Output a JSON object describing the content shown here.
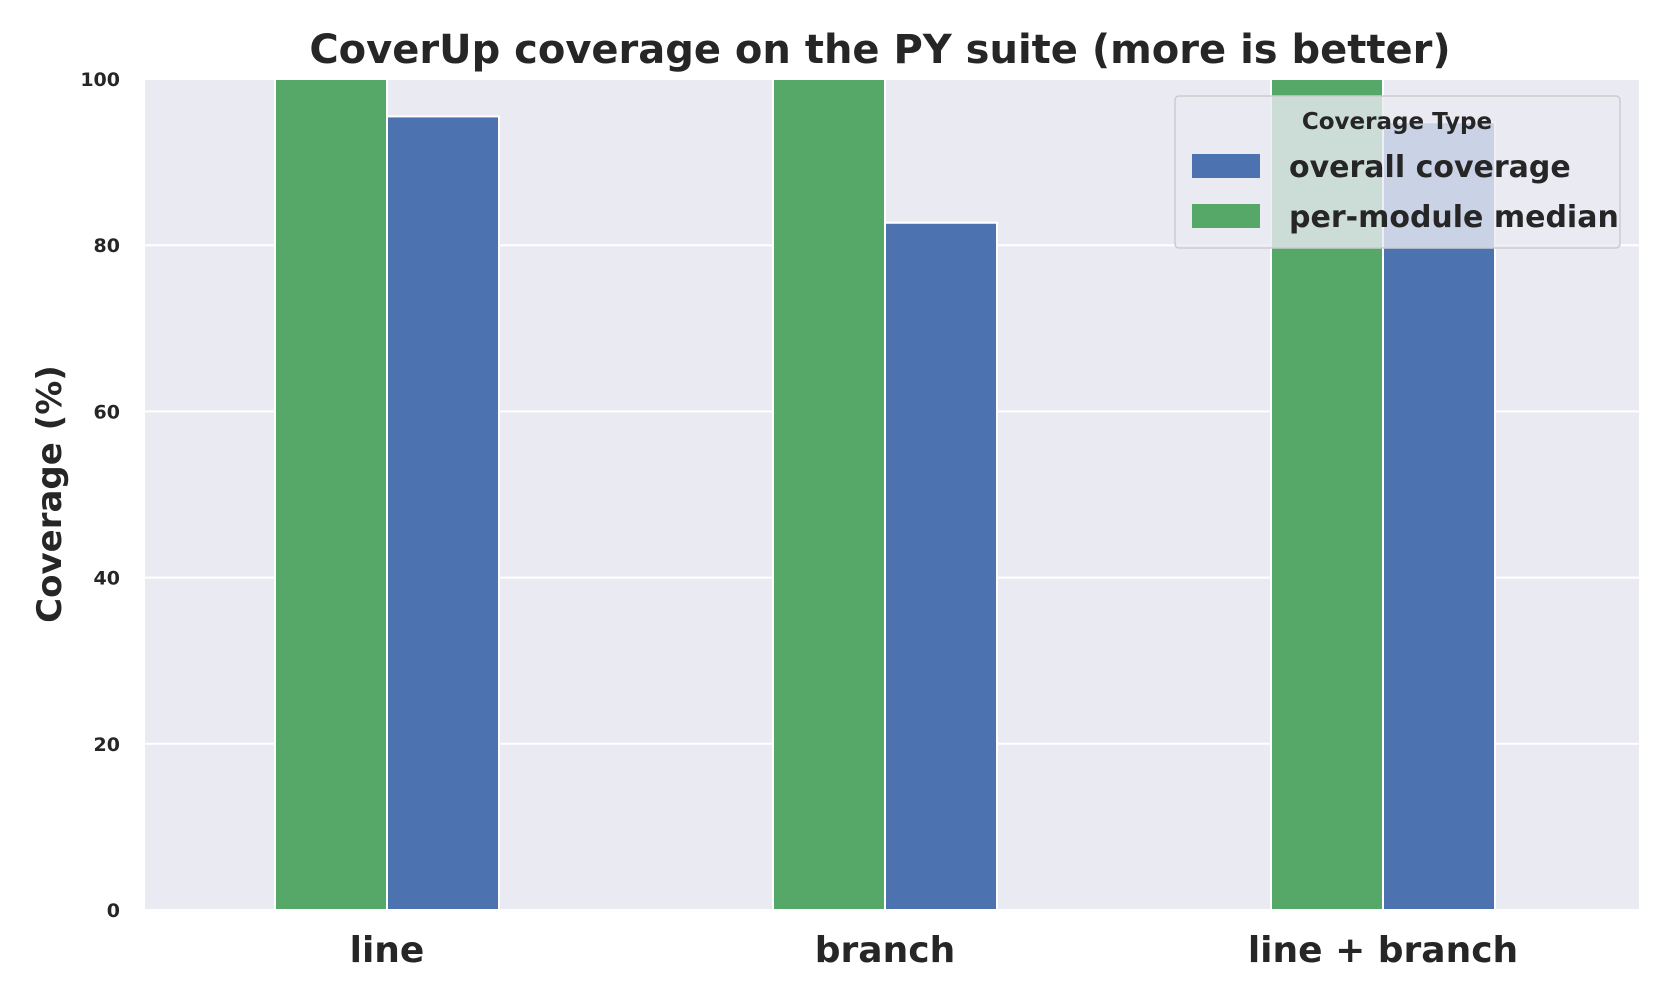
{
  "chart_data": {
    "type": "bar",
    "title": "CoverUp coverage on the PY suite (more is better)",
    "xlabel": "",
    "ylabel": "Coverage (%)",
    "ylim": [
      0,
      100
    ],
    "yticks": [
      "0",
      "20",
      "40",
      "60",
      "80",
      "100"
    ],
    "categories": [
      "line",
      "branch",
      "line + branch"
    ],
    "series": [
      {
        "name": "per-module median",
        "color": "#55a868",
        "values": [
          100,
          100,
          100
        ]
      },
      {
        "name": "overall coverage",
        "color": "#4c72b0",
        "values": [
          95.5,
          82.7,
          94.8
        ]
      }
    ],
    "legend": {
      "title": "Coverage Type",
      "placement": "top-right",
      "order": [
        1,
        0
      ]
    },
    "grid": true,
    "plot_background": "#eaeaf2"
  }
}
